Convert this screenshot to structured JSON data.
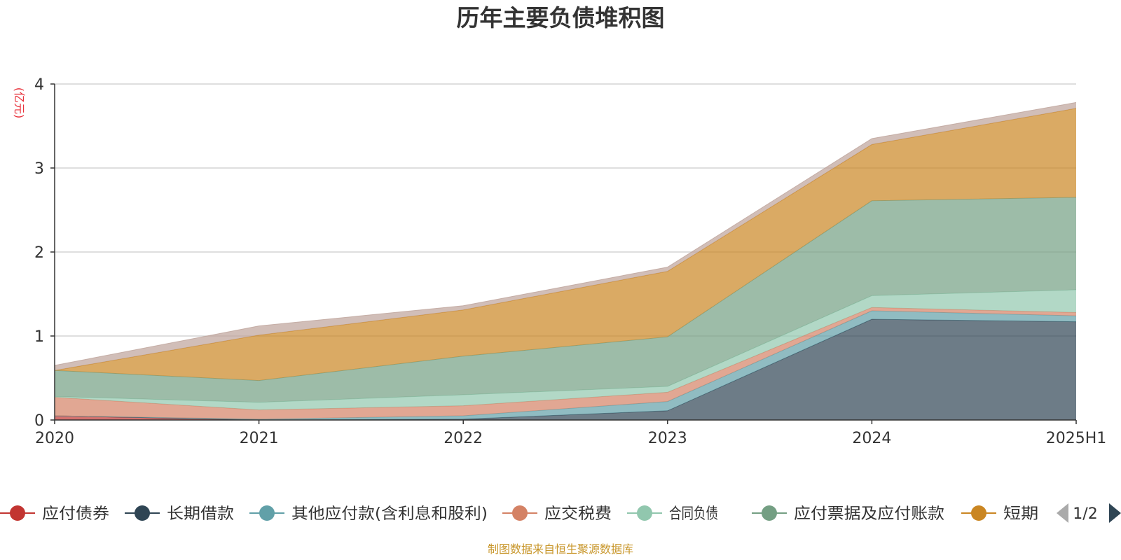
{
  "chart_data": {
    "type": "area",
    "title": "历年主要负债堆积图",
    "unit_label": "(亿元)",
    "x": [
      "2020",
      "2021",
      "2022",
      "2023",
      "2024",
      "2025H1"
    ],
    "ylim": [
      0,
      4
    ],
    "yticks": [
      "0",
      "1",
      "2",
      "3",
      "4"
    ],
    "stacked": true,
    "grid": true,
    "series": [
      {
        "name": "应付债券",
        "color": "#c23531",
        "values": [
          0.05,
          0.0,
          0.0,
          0.0,
          0.0,
          0.0
        ]
      },
      {
        "name": "长期借款",
        "color": "#2f4554",
        "values": [
          0.0,
          0.0,
          0.01,
          0.11,
          1.2,
          1.17
        ]
      },
      {
        "name": "其他应付款(含利息和股利)",
        "color": "#61a0a8",
        "values": [
          0.0,
          0.01,
          0.04,
          0.11,
          0.1,
          0.07
        ]
      },
      {
        "name": "应交税费",
        "color": "#d48265",
        "values": [
          0.22,
          0.11,
          0.12,
          0.11,
          0.04,
          0.04
        ]
      },
      {
        "name": "合同负债",
        "color": "#91c7ae",
        "values": [
          0.01,
          0.09,
          0.13,
          0.07,
          0.14,
          0.27
        ]
      },
      {
        "name": "应付票据及应付账款",
        "color": "#749f83",
        "values": [
          0.31,
          0.26,
          0.46,
          0.59,
          1.13,
          1.1
        ]
      },
      {
        "name": "短期借款",
        "color": "#ca8622",
        "values": [
          0.0,
          0.54,
          0.55,
          0.78,
          0.67,
          1.06
        ]
      },
      {
        "name": "",
        "color": "#bda29a",
        "values": [
          0.06,
          0.11,
          0.05,
          0.05,
          0.07,
          0.07
        ]
      }
    ],
    "legend_position": "bottom",
    "legend_visible_labels": [
      "应付债券",
      "长期借款",
      "其他应付款(含利息和股利)",
      "应交税费",
      "合同负债",
      "应付票据及应付账款",
      "短期("
    ],
    "legend_page": "1/2"
  },
  "source_note": "制图数据来自恒生聚源数据库",
  "colors": {
    "unit_label": "#e8323c",
    "source_note": "#c8962a",
    "grid": "#cccccc",
    "axis": "#333333",
    "pager_active": "#2f4554",
    "pager_inactive": "#aaaaaa"
  }
}
